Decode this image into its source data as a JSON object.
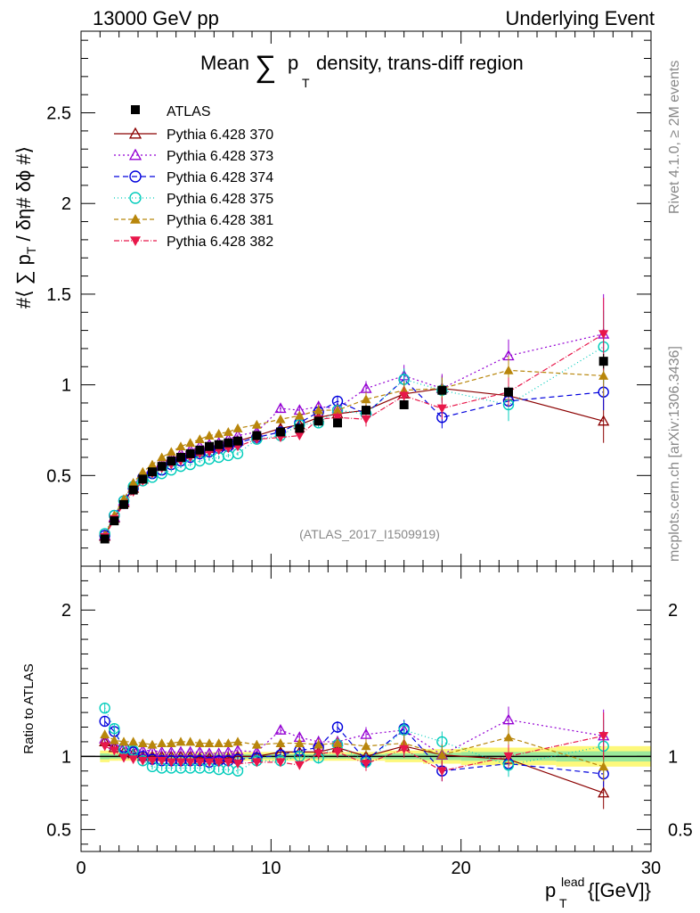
{
  "header": {
    "left": "13000 GeV pp",
    "right": "Underlying Event"
  },
  "title": {
    "prefix": "Mean",
    "sum_symbol": "∑",
    "p": "p",
    "sub": "T",
    "suffix": "density, trans-diff region"
  },
  "y_label": {
    "main": "#⟨ ∑ p",
    "sub": "T",
    "tail": " / δη# δϕ #⟩"
  },
  "ratio_label": "Ratio to ATLAS",
  "x_label": {
    "p": "p",
    "sup": "lead",
    "sub": "T",
    "units": " {[GeV]}"
  },
  "watermark": "(ATLAS_2017_I1509919)",
  "side_top": "Rivet 4.1.0, ≥ 2M events",
  "side_bottom": "mcplots.cern.ch [arXiv:1306.3436]",
  "chart_data": {
    "type": "scatter",
    "xlim": [
      0,
      30
    ],
    "ylim_main": [
      0,
      2.95
    ],
    "ylim_ratio": [
      0.35,
      2.3
    ],
    "x_ticks": [
      0,
      10,
      20,
      30
    ],
    "y_ticks_main": [
      0.5,
      1,
      1.5,
      2,
      2.5
    ],
    "y_tick_labels_main": [
      "0.5",
      "1",
      "1.5",
      "2",
      "2.5"
    ],
    "y_ticks_ratio": [
      0.5,
      1,
      2
    ],
    "y_tick_labels_ratio": [
      "0.5",
      "1",
      "2"
    ],
    "x_tick_labels": [
      "0",
      "10",
      "20",
      "30"
    ],
    "legend_position": "top-left",
    "band": {
      "x": [
        1.25,
        1.75,
        2.25,
        2.75,
        3.25,
        3.75,
        4.25,
        4.75,
        5.25,
        5.75,
        6.25,
        6.75,
        7.25,
        7.75,
        8.25,
        9.25,
        10.5,
        11.5,
        12.5,
        13.5,
        15.0,
        17.0,
        19.0,
        22.5,
        27.5
      ],
      "x_edges": [
        1.0,
        1.5,
        2.0,
        2.5,
        3.0,
        3.5,
        4.0,
        4.5,
        5.0,
        5.5,
        6.0,
        6.5,
        7.0,
        7.5,
        8.0,
        8.5,
        10.0,
        11.0,
        12.0,
        13.0,
        14.0,
        16.0,
        18.0,
        20.0,
        25.0,
        30.0
      ],
      "outer": [
        0.04,
        0.03,
        0.03,
        0.03,
        0.03,
        0.03,
        0.03,
        0.03,
        0.03,
        0.03,
        0.03,
        0.03,
        0.03,
        0.03,
        0.03,
        0.03,
        0.03,
        0.03,
        0.03,
        0.03,
        0.03,
        0.04,
        0.05,
        0.06,
        0.07
      ],
      "inner": [
        0.02,
        0.015,
        0.015,
        0.015,
        0.015,
        0.015,
        0.015,
        0.015,
        0.015,
        0.015,
        0.015,
        0.015,
        0.015,
        0.015,
        0.015,
        0.015,
        0.015,
        0.015,
        0.015,
        0.015,
        0.015,
        0.02,
        0.025,
        0.03,
        0.035
      ]
    },
    "atlas": {
      "name": "ATLAS",
      "x": [
        1.25,
        1.75,
        2.25,
        2.75,
        3.25,
        3.75,
        4.25,
        4.75,
        5.25,
        5.75,
        6.25,
        6.75,
        7.25,
        7.75,
        8.25,
        9.25,
        10.5,
        11.5,
        12.5,
        13.5,
        15.0,
        17.0,
        19.0,
        22.5,
        27.5
      ],
      "y": [
        0.15,
        0.25,
        0.34,
        0.42,
        0.48,
        0.52,
        0.55,
        0.58,
        0.6,
        0.62,
        0.64,
        0.66,
        0.67,
        0.68,
        0.69,
        0.72,
        0.74,
        0.76,
        0.8,
        0.79,
        0.86,
        0.89,
        0.97,
        0.96,
        1.13
      ],
      "err": [
        0.01,
        0.01,
        0.01,
        0.01,
        0.01,
        0.01,
        0.01,
        0.01,
        0.01,
        0.01,
        0.01,
        0.01,
        0.01,
        0.01,
        0.01,
        0.01,
        0.01,
        0.01,
        0.01,
        0.01,
        0.01,
        0.02,
        0.02,
        0.03,
        0.04
      ]
    },
    "series": [
      {
        "name": "Pythia 6.428 370",
        "color": "#8b0000",
        "marker": "triangle-open",
        "dash": "",
        "x": [
          1.25,
          1.75,
          2.25,
          2.75,
          3.25,
          3.75,
          4.25,
          4.75,
          5.25,
          5.75,
          6.25,
          6.75,
          7.25,
          7.75,
          8.25,
          9.25,
          10.5,
          11.5,
          12.5,
          13.5,
          15.0,
          17.0,
          19.0,
          22.5,
          27.5
        ],
        "y": [
          0.165,
          0.265,
          0.35,
          0.43,
          0.48,
          0.52,
          0.55,
          0.58,
          0.6,
          0.62,
          0.63,
          0.65,
          0.66,
          0.67,
          0.69,
          0.72,
          0.76,
          0.78,
          0.82,
          0.84,
          0.86,
          0.95,
          0.98,
          0.94,
          0.8
        ],
        "err": [
          0.01,
          0.01,
          0.01,
          0.01,
          0.01,
          0.01,
          0.01,
          0.01,
          0.01,
          0.01,
          0.01,
          0.01,
          0.01,
          0.01,
          0.01,
          0.02,
          0.02,
          0.02,
          0.03,
          0.03,
          0.04,
          0.05,
          0.07,
          0.08,
          0.12
        ],
        "ratio_y": [
          1.1,
          1.06,
          1.03,
          1.02,
          1.0,
          1.0,
          1.0,
          1.0,
          1.0,
          1.0,
          0.99,
          0.99,
          0.98,
          0.99,
          1.0,
          1.0,
          1.03,
          1.03,
          1.03,
          1.06,
          1.0,
          1.07,
          1.01,
          0.98,
          0.75
        ],
        "ratio_err": [
          0.03,
          0.03,
          0.03,
          0.02,
          0.02,
          0.02,
          0.02,
          0.02,
          0.02,
          0.02,
          0.02,
          0.02,
          0.02,
          0.02,
          0.02,
          0.03,
          0.03,
          0.03,
          0.04,
          0.04,
          0.05,
          0.06,
          0.07,
          0.08,
          0.11
        ]
      },
      {
        "name": "Pythia 6.428 373",
        "color": "#9400d3",
        "marker": "triangle-open",
        "dash": "2,3",
        "x": [
          1.25,
          1.75,
          2.25,
          2.75,
          3.25,
          3.75,
          4.25,
          4.75,
          5.25,
          5.75,
          6.25,
          6.75,
          7.25,
          7.75,
          8.25,
          9.25,
          10.5,
          11.5,
          12.5,
          13.5,
          15.0,
          17.0,
          19.0,
          22.5,
          27.5
        ],
        "y": [
          0.17,
          0.27,
          0.36,
          0.45,
          0.5,
          0.54,
          0.57,
          0.6,
          0.62,
          0.64,
          0.66,
          0.67,
          0.68,
          0.7,
          0.72,
          0.74,
          0.87,
          0.86,
          0.88,
          0.87,
          0.98,
          1.05,
          0.98,
          1.16,
          1.28
        ],
        "err": [
          0.01,
          0.01,
          0.01,
          0.01,
          0.01,
          0.01,
          0.01,
          0.01,
          0.01,
          0.01,
          0.01,
          0.01,
          0.01,
          0.01,
          0.01,
          0.02,
          0.02,
          0.02,
          0.03,
          0.03,
          0.04,
          0.06,
          0.08,
          0.09,
          0.22
        ],
        "ratio_y": [
          1.12,
          1.08,
          1.06,
          1.05,
          1.04,
          1.04,
          1.03,
          1.03,
          1.03,
          1.03,
          1.03,
          1.02,
          1.02,
          1.03,
          1.04,
          1.03,
          1.18,
          1.13,
          1.1,
          1.1,
          1.15,
          1.18,
          1.01,
          1.25,
          1.14
        ],
        "ratio_err": [
          0.03,
          0.03,
          0.03,
          0.02,
          0.02,
          0.02,
          0.02,
          0.02,
          0.02,
          0.02,
          0.02,
          0.02,
          0.02,
          0.02,
          0.02,
          0.03,
          0.03,
          0.03,
          0.04,
          0.04,
          0.05,
          0.06,
          0.08,
          0.09,
          0.18
        ]
      },
      {
        "name": "Pythia 6.428 374",
        "color": "#0000dd",
        "marker": "circle-open",
        "dash": "6,4",
        "x": [
          1.25,
          1.75,
          2.25,
          2.75,
          3.25,
          3.75,
          4.25,
          4.75,
          5.25,
          5.75,
          6.25,
          6.75,
          7.25,
          7.75,
          8.25,
          9.25,
          10.5,
          11.5,
          12.5,
          13.5,
          15.0,
          17.0,
          19.0,
          22.5,
          27.5
        ],
        "y": [
          0.17,
          0.28,
          0.36,
          0.43,
          0.49,
          0.51,
          0.53,
          0.56,
          0.58,
          0.6,
          0.62,
          0.63,
          0.65,
          0.66,
          0.68,
          0.71,
          0.74,
          0.79,
          0.85,
          0.91,
          0.84,
          1.03,
          0.82,
          0.91,
          0.96
        ],
        "err": [
          0.01,
          0.01,
          0.01,
          0.01,
          0.01,
          0.01,
          0.01,
          0.01,
          0.01,
          0.01,
          0.01,
          0.01,
          0.01,
          0.01,
          0.01,
          0.02,
          0.02,
          0.02,
          0.03,
          0.03,
          0.04,
          0.05,
          0.06,
          0.08,
          0.1
        ],
        "ratio_y": [
          1.24,
          1.17,
          1.06,
          1.03,
          1.0,
          0.98,
          0.97,
          0.97,
          0.97,
          0.97,
          0.97,
          0.96,
          0.97,
          0.97,
          0.98,
          0.99,
          1.01,
          1.04,
          1.06,
          1.2,
          0.97,
          1.19,
          0.9,
          0.95,
          0.88
        ],
        "ratio_err": [
          0.03,
          0.03,
          0.03,
          0.02,
          0.02,
          0.02,
          0.02,
          0.02,
          0.02,
          0.02,
          0.02,
          0.02,
          0.02,
          0.02,
          0.02,
          0.03,
          0.03,
          0.03,
          0.04,
          0.04,
          0.05,
          0.06,
          0.07,
          0.08,
          0.09
        ]
      },
      {
        "name": "Pythia 6.428 375",
        "color": "#00ccbb",
        "marker": "circle-open",
        "dash": "1,3",
        "x": [
          1.25,
          1.75,
          2.25,
          2.75,
          3.25,
          3.75,
          4.25,
          4.75,
          5.25,
          5.75,
          6.25,
          6.75,
          7.25,
          7.75,
          8.25,
          9.25,
          10.5,
          11.5,
          12.5,
          13.5,
          15.0,
          17.0,
          19.0,
          22.5,
          27.5
        ],
        "y": [
          0.18,
          0.28,
          0.36,
          0.44,
          0.47,
          0.49,
          0.51,
          0.53,
          0.55,
          0.56,
          0.58,
          0.59,
          0.6,
          0.61,
          0.62,
          0.7,
          0.72,
          0.78,
          0.79,
          0.86,
          0.84,
          1.03,
          0.97,
          0.89,
          1.21
        ],
        "err": [
          0.01,
          0.01,
          0.01,
          0.01,
          0.01,
          0.01,
          0.01,
          0.01,
          0.01,
          0.01,
          0.01,
          0.01,
          0.01,
          0.01,
          0.01,
          0.02,
          0.02,
          0.02,
          0.03,
          0.03,
          0.04,
          0.06,
          0.07,
          0.09,
          0.2
        ],
        "ratio_y": [
          1.33,
          1.19,
          1.05,
          1.04,
          0.97,
          0.93,
          0.92,
          0.92,
          0.92,
          0.92,
          0.92,
          0.92,
          0.91,
          0.91,
          0.9,
          0.97,
          0.97,
          1.0,
          0.99,
          1.08,
          0.96,
          1.18,
          1.1,
          0.94,
          1.07
        ],
        "ratio_err": [
          0.03,
          0.03,
          0.03,
          0.02,
          0.02,
          0.02,
          0.02,
          0.02,
          0.02,
          0.02,
          0.02,
          0.02,
          0.02,
          0.02,
          0.02,
          0.03,
          0.03,
          0.03,
          0.04,
          0.04,
          0.05,
          0.06,
          0.07,
          0.08,
          0.18
        ]
      },
      {
        "name": "Pythia 6.428 381",
        "color": "#b8860b",
        "marker": "triangle-filled",
        "dash": "5,3",
        "x": [
          1.25,
          1.75,
          2.25,
          2.75,
          3.25,
          3.75,
          4.25,
          4.75,
          5.25,
          5.75,
          6.25,
          6.75,
          7.25,
          7.75,
          8.25,
          9.25,
          10.5,
          11.5,
          12.5,
          13.5,
          15.0,
          17.0,
          19.0,
          22.5,
          27.5
        ],
        "y": [
          0.17,
          0.28,
          0.37,
          0.46,
          0.52,
          0.56,
          0.6,
          0.63,
          0.66,
          0.68,
          0.7,
          0.72,
          0.73,
          0.74,
          0.76,
          0.78,
          0.81,
          0.83,
          0.86,
          0.86,
          0.92,
          0.97,
          0.98,
          1.08,
          1.05
        ],
        "err": [
          0.01,
          0.01,
          0.01,
          0.01,
          0.01,
          0.01,
          0.01,
          0.01,
          0.01,
          0.01,
          0.01,
          0.01,
          0.01,
          0.01,
          0.01,
          0.02,
          0.02,
          0.02,
          0.03,
          0.03,
          0.04,
          0.05,
          0.06,
          0.08,
          0.12
        ],
        "ratio_y": [
          1.15,
          1.11,
          1.1,
          1.1,
          1.09,
          1.08,
          1.09,
          1.09,
          1.1,
          1.1,
          1.09,
          1.09,
          1.09,
          1.09,
          1.1,
          1.08,
          1.09,
          1.09,
          1.08,
          1.09,
          1.07,
          1.09,
          1.01,
          1.13,
          0.93
        ],
        "ratio_err": [
          0.03,
          0.03,
          0.03,
          0.02,
          0.02,
          0.02,
          0.02,
          0.02,
          0.02,
          0.02,
          0.02,
          0.02,
          0.02,
          0.02,
          0.02,
          0.03,
          0.03,
          0.03,
          0.04,
          0.04,
          0.05,
          0.06,
          0.07,
          0.08,
          0.1
        ]
      },
      {
        "name": "Pythia 6.428 382",
        "color": "#e8174a",
        "marker": "triangle-down-filled",
        "dash": "6,2,1,2",
        "x": [
          1.25,
          1.75,
          2.25,
          2.75,
          3.25,
          3.75,
          4.25,
          4.75,
          5.25,
          5.75,
          6.25,
          6.75,
          7.25,
          7.75,
          8.25,
          9.25,
          10.5,
          11.5,
          12.5,
          13.5,
          15.0,
          17.0,
          19.0,
          22.5,
          27.5
        ],
        "y": [
          0.16,
          0.26,
          0.34,
          0.41,
          0.47,
          0.51,
          0.54,
          0.56,
          0.58,
          0.6,
          0.62,
          0.63,
          0.64,
          0.65,
          0.66,
          0.7,
          0.71,
          0.72,
          0.81,
          0.82,
          0.81,
          0.94,
          0.87,
          0.96,
          1.28
        ],
        "err": [
          0.01,
          0.01,
          0.01,
          0.01,
          0.01,
          0.01,
          0.01,
          0.01,
          0.01,
          0.01,
          0.01,
          0.01,
          0.01,
          0.01,
          0.01,
          0.02,
          0.02,
          0.02,
          0.03,
          0.03,
          0.04,
          0.05,
          0.06,
          0.08,
          0.2
        ],
        "ratio_y": [
          1.07,
          1.04,
          0.99,
          0.98,
          0.97,
          0.97,
          0.97,
          0.96,
          0.96,
          0.96,
          0.96,
          0.96,
          0.96,
          0.96,
          0.95,
          0.96,
          0.96,
          0.94,
          1.02,
          1.03,
          0.95,
          1.05,
          0.9,
          1.0,
          1.14
        ],
        "ratio_err": [
          0.03,
          0.03,
          0.03,
          0.02,
          0.02,
          0.02,
          0.02,
          0.02,
          0.02,
          0.02,
          0.02,
          0.02,
          0.02,
          0.02,
          0.02,
          0.03,
          0.03,
          0.03,
          0.04,
          0.04,
          0.05,
          0.06,
          0.07,
          0.08,
          0.16
        ]
      }
    ]
  }
}
